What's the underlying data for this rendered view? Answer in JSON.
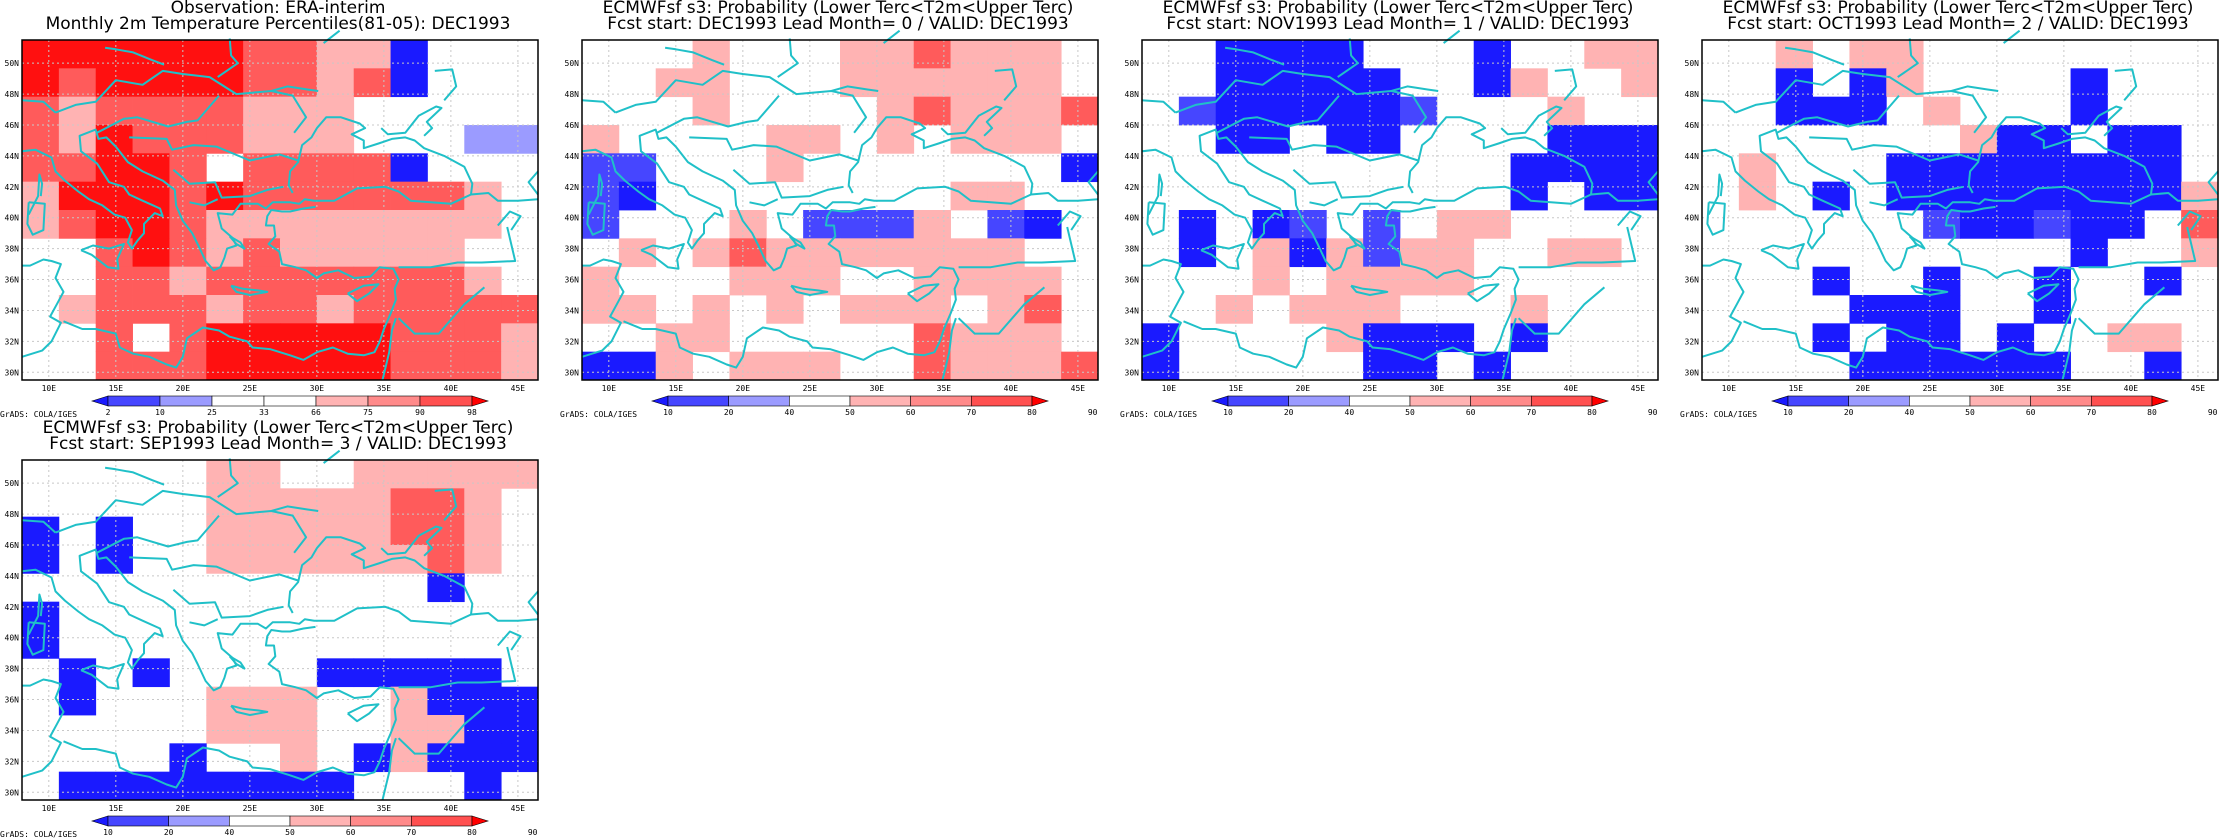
{
  "palette": {
    "prob_bins": [
      "#1a1aff",
      "#4646ff",
      "#9b9bff",
      "#ffffff",
      "#ffb3b3",
      "#ff8a8a",
      "#ff5050",
      "#ff0000"
    ],
    "pct_bins": [
      "#1a1aff",
      "#4646ff",
      "#9b9bff",
      "#ffffff",
      "#ffffff",
      "#ffb3b3",
      "#ff8a8a",
      "#ff5050",
      "#ff0000"
    ],
    "coast": "#20c0c8"
  },
  "axes": {
    "lon_labels": [
      "10E",
      "15E",
      "20E",
      "25E",
      "30E",
      "35E",
      "40E",
      "45E"
    ],
    "lat_labels": [
      "30N",
      "32N",
      "34N",
      "36N",
      "38N",
      "40N",
      "42N",
      "44N",
      "46N",
      "48N",
      "50N"
    ]
  },
  "credit": "GrADS: COLA/IGES",
  "panels": [
    {
      "id": "obs",
      "title1": "Observation: ERA-interim",
      "title2": "Monthly 2m Temperature Percentiles(81-05): DEC1993",
      "legend": [
        "2",
        "10",
        "25",
        "33",
        "66",
        "75",
        "90",
        "98"
      ],
      "grid": [
        "77777766551000",
        "76777766561000",
        "65666655500000",
        "65766655500022",
        "66776066661000",
        "57776766666650",
        "56776555555550",
        "00676565555500",
        "00665666666650",
        "05666566566666",
        "00606777776665",
        "00666777776665"
      ]
    },
    {
      "id": "lead0",
      "title1": "ECMWFsf s3: Probability (Lower Terc<T2m<Upper Terc)",
      "title2": "Fcst start: DEC1993  Lead Month= 0 / VALID: DEC1993",
      "legend": [
        "10",
        "20",
        "40",
        "50",
        "60",
        "70",
        "80",
        "90"
      ],
      "grid": [
        "00050005565550",
        "00550005555550",
        "00050000565556",
        "50000550505550",
        "44000500000001",
        "41000000005500",
        "40005044450410",
        "05056555555500",
        "50005550055550",
        "55050505550560",
        "00550000065550",
        "11505550065556"
      ]
    },
    {
      "id": "lead1",
      "title1": "ECMWFsf s3: Probability (Lower Terc<T2m<Upper Terc)",
      "title2": "Fcst start: NOV1993  Lead Month= 1 / VALID: DEC1993",
      "legend": [
        "10",
        "20",
        "40",
        "50",
        "60",
        "70",
        "80",
        "90"
      ],
      "grid": [
        "00111100010055",
        "00111110015005",
        "04111114000500",
        "00110110000111",
        "00000000001111",
        "00000000001011",
        "01014040550000",
        "01051545500550",
        "00050555500000",
        "00505550005000",
        "10000511101000",
        "10000011010000"
      ]
    },
    {
      "id": "lead2",
      "title1": "ECMWFsf s3: Probability (Lower Terc<T2m<Upper Terc)",
      "title2": "Fcst start: OCT1993  Lead Month= 2 / VALID: DEC1993",
      "legend": [
        "10",
        "20",
        "40",
        "50",
        "60",
        "70",
        "80",
        "90"
      ],
      "grid": [
        "00505500000000",
        "00101500001000",
        "00111050001000",
        "00000005110110",
        "05000111111110",
        "05010111111115",
        "00000041141106",
        "00000000001005",
        "00010010010010",
        "00001110010000",
        "00010110100550",
        "00001111110010"
      ]
    },
    {
      "id": "lead3",
      "title1": "ECMWFsf s3: Probability (Lower Terc<T2m<Upper Terc)",
      "title2": "Fcst start: SEP1993  Lead Month= 3 / VALID: DEC1993",
      "legend": [
        "10",
        "20",
        "40",
        "50",
        "60",
        "70",
        "80",
        "90"
      ],
      "grid": [
        "00000550055555",
        "00000555556650",
        "10100555556650",
        "10100555555650",
        "00000000000100",
        "10000000000000",
        "10000000000000",
        "01010000111110",
        "01000555005111",
        "00000555005511",
        "00001005015111",
        "01111111100010"
      ]
    }
  ]
}
